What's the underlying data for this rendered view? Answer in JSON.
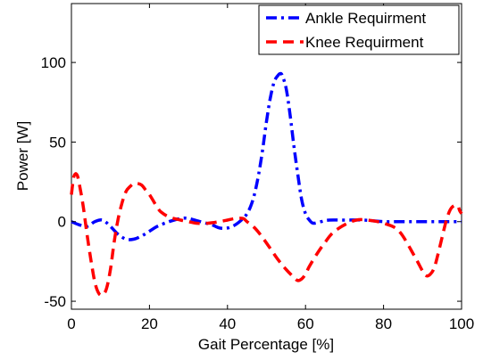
{
  "chart_data": {
    "type": "line",
    "title": "",
    "xlabel": "Gait  Percentage [%]",
    "ylabel": "Power [W]",
    "xlim": [
      0,
      100
    ],
    "ylim": [
      -55,
      137
    ],
    "xticks": [
      0,
      20,
      40,
      60,
      80,
      100
    ],
    "yticks": [
      -50,
      0,
      50,
      100
    ],
    "grid": false,
    "legend_position": "top-right",
    "series": [
      {
        "name": "Ankle Requirment",
        "color": "#0000ff",
        "dash": "dash-dot",
        "x": [
          0,
          2,
          4,
          6,
          8,
          10,
          12,
          14,
          16,
          18,
          20,
          22,
          25,
          28,
          30,
          33,
          36,
          38,
          40,
          42,
          44,
          45,
          46,
          47,
          48,
          49,
          50,
          51,
          52,
          53,
          53.5,
          54,
          55,
          56,
          57,
          58,
          59,
          60,
          61,
          62,
          64,
          66,
          70,
          75,
          80,
          85,
          90,
          95,
          100
        ],
        "y": [
          0,
          -2,
          -3,
          0,
          1,
          -3,
          -8,
          -11,
          -11,
          -9,
          -6,
          -3,
          0,
          2,
          2,
          0,
          -2,
          -4,
          -4,
          -2,
          2,
          5,
          10,
          18,
          30,
          45,
          63,
          78,
          88,
          92,
          93,
          92,
          84,
          68,
          48,
          30,
          14,
          5,
          1,
          -1,
          0,
          1,
          1,
          1,
          0,
          0,
          0,
          0,
          0
        ]
      },
      {
        "name": "Knee Requirment",
        "color": "#ff0000",
        "dash": "dash",
        "x": [
          0,
          0.5,
          1,
          1.5,
          2,
          3,
          4,
          5,
          6,
          7,
          8,
          9,
          10,
          11,
          12,
          13,
          14,
          15,
          16,
          17,
          18,
          19,
          20,
          21,
          22,
          23,
          25,
          28,
          30,
          32,
          35,
          38,
          40,
          42,
          44,
          45,
          47,
          49,
          51,
          53,
          55,
          57,
          58,
          59,
          60,
          61,
          63,
          65,
          67,
          70,
          73,
          76,
          80,
          84,
          88,
          90,
          91,
          92,
          93,
          94,
          95,
          96,
          97,
          98,
          99,
          99.5,
          100
        ],
        "y": [
          17,
          27,
          30,
          29,
          24,
          10,
          -8,
          -24,
          -38,
          -45,
          -46,
          -42,
          -30,
          -12,
          2,
          12,
          19,
          22,
          24,
          24,
          23,
          20,
          17,
          13,
          9,
          6,
          3,
          1,
          0,
          -1,
          -1,
          0,
          1,
          2,
          2,
          0,
          -4,
          -10,
          -17,
          -24,
          -30,
          -35,
          -37,
          -36,
          -33,
          -28,
          -20,
          -13,
          -7,
          -2,
          1,
          1,
          -1,
          -6,
          -22,
          -31,
          -34,
          -33,
          -29,
          -20,
          -10,
          0,
          7,
          10,
          10,
          7,
          5
        ]
      }
    ]
  }
}
